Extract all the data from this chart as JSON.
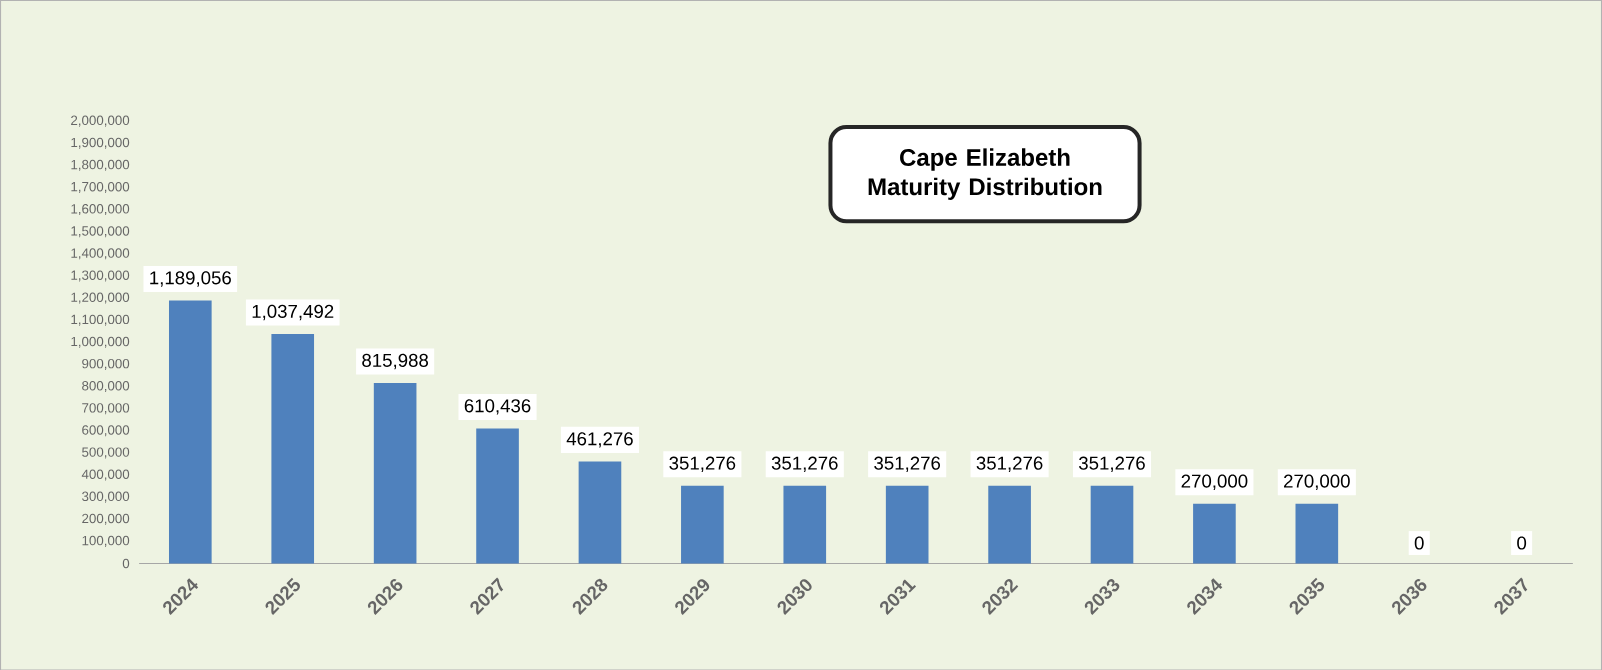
{
  "chart_data": {
    "type": "bar",
    "title": "Cape Elizabeth Maturity Distribution",
    "categories": [
      "2024",
      "2025",
      "2026",
      "2027",
      "2028",
      "2029",
      "2030",
      "2031",
      "2032",
      "2033",
      "2034",
      "2035",
      "2036",
      "2037"
    ],
    "values": [
      1189056,
      1037492,
      815988,
      610436,
      461276,
      351276,
      351276,
      351276,
      351276,
      351276,
      270000,
      270000,
      0,
      0
    ],
    "value_labels": [
      "1,189,056",
      "1,037,492",
      "815,988",
      "610,436",
      "461,276",
      "351,276",
      "351,276",
      "351,276",
      "351,276",
      "351,276",
      "270,000",
      "270,000",
      "0",
      "0"
    ],
    "color": "#4f81bd",
    "ylim": [
      0,
      2000000
    ],
    "yticks": [
      {
        "value": 0,
        "label": "0"
      },
      {
        "value": 100000,
        "label": "100,000"
      },
      {
        "value": 200000,
        "label": "200,000"
      },
      {
        "value": 300000,
        "label": "300,000"
      },
      {
        "value": 400000,
        "label": "400,000"
      },
      {
        "value": 500000,
        "label": "500,000"
      },
      {
        "value": 600000,
        "label": "600,000"
      },
      {
        "value": 700000,
        "label": "700,000"
      },
      {
        "value": 800000,
        "label": "800,000"
      },
      {
        "value": 900000,
        "label": "900,000"
      },
      {
        "value": 1000000,
        "label": "1,000,000"
      },
      {
        "value": 1100000,
        "label": "1,100,000"
      },
      {
        "value": 1200000,
        "label": "1,200,000"
      },
      {
        "value": 1300000,
        "label": "1,300,000"
      },
      {
        "value": 1400000,
        "label": "1,400,000"
      },
      {
        "value": 1500000,
        "label": "1,500,000"
      },
      {
        "value": 1600000,
        "label": "1,600,000"
      },
      {
        "value": 1700000,
        "label": "1,700,000"
      },
      {
        "value": 1800000,
        "label": "1,800,000"
      },
      {
        "value": 1900000,
        "label": "1,900,000"
      },
      {
        "value": 2000000,
        "label": "2,000,000"
      }
    ]
  }
}
